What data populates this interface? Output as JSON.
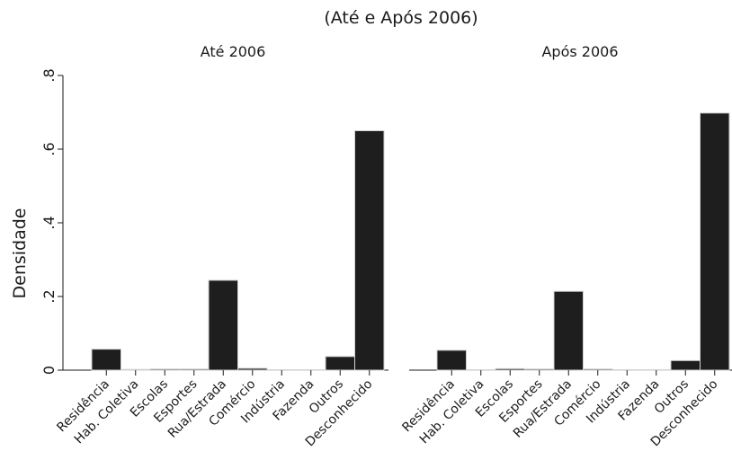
{
  "chart_data": {
    "type": "bar",
    "title": "(Até e Após 2006)",
    "ylabel": "Densidade",
    "ylim": [
      0,
      0.8
    ],
    "yticks": [
      0,
      0.2,
      0.4,
      0.6,
      0.8
    ],
    "ytick_labels": [
      "0",
      ".2",
      ".4",
      ".6",
      ".8"
    ],
    "categories": [
      "Residência",
      "Hab. Coletiva",
      "Escolas",
      "Esportes",
      "Rua/Estrada",
      "Comércio",
      "Indústria",
      "Fazenda",
      "Outros",
      "Desconhecido"
    ],
    "bar_color": "#1e1e1e",
    "grid": false,
    "panels": [
      {
        "title": "Até 2006",
        "values": [
          0.057,
          0.002,
          0.003,
          0.003,
          0.244,
          0.005,
          0.001,
          0.001,
          0.037,
          0.65
        ]
      },
      {
        "title": "Após 2006",
        "values": [
          0.054,
          0.001,
          0.004,
          0.003,
          0.214,
          0.003,
          0.001,
          0.001,
          0.026,
          0.698
        ]
      }
    ]
  }
}
